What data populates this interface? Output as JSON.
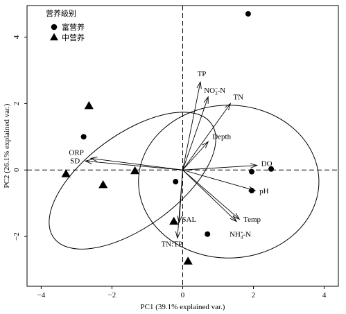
{
  "chart_data": {
    "type": "scatter",
    "xlabel": "PC1 (39.1% explained var.)",
    "ylabel": "PC2 (26.1% explained var.)",
    "xlim": [
      -4.4,
      4.4
    ],
    "ylim": [
      -3.5,
      4.95
    ],
    "xticks": [
      -4,
      -2,
      0,
      2,
      4
    ],
    "yticks": [
      -2,
      0,
      2,
      4
    ],
    "grid": false,
    "reference_lines": {
      "x": 0,
      "y": 0,
      "style": "dashed"
    },
    "legend": {
      "title": "营养级别",
      "placement": "top-left",
      "entries": [
        {
          "label": "富营养",
          "marker": "circle"
        },
        {
          "label": "中营养",
          "marker": "triangle"
        }
      ]
    },
    "series": [
      {
        "name": "富营养",
        "marker": "circle",
        "points": [
          [
            1.85,
            4.7
          ],
          [
            -2.8,
            1.0
          ],
          [
            -0.2,
            -0.35
          ],
          [
            1.95,
            -0.05
          ],
          [
            2.5,
            0.03
          ],
          [
            1.95,
            -0.62
          ],
          [
            0.7,
            -1.93
          ]
        ]
      },
      {
        "name": "中营养",
        "marker": "triangle",
        "points": [
          [
            -2.65,
            1.93
          ],
          [
            -3.3,
            -0.12
          ],
          [
            -1.35,
            -0.03
          ],
          [
            -2.25,
            -0.45
          ],
          [
            -0.25,
            -1.55
          ],
          [
            0.15,
            -2.75
          ]
        ]
      }
    ],
    "ellipses": [
      {
        "group": "富营养",
        "center": [
          1.3,
          -0.35
        ],
        "rx": 2.55,
        "ry": 2.3,
        "angle_deg": 0
      },
      {
        "group": "中营养",
        "center": [
          -1.42,
          -0.32
        ],
        "rx": 2.75,
        "ry": 1.4,
        "angle_deg": -36
      }
    ],
    "vectors": [
      {
        "label": "TP",
        "x": 0.5,
        "y": 2.65
      },
      {
        "label_main": "NO",
        "label_sub": "3",
        "label_sup": "−",
        "label_tail": "-N",
        "x": 0.72,
        "y": 2.2
      },
      {
        "label": "TN",
        "x": 1.35,
        "y": 2.0
      },
      {
        "label": "Depth",
        "x": 0.72,
        "y": 0.85
      },
      {
        "label": "DO",
        "x": 2.1,
        "y": 0.14
      },
      {
        "label": "pH",
        "x": 2.05,
        "y": -0.62
      },
      {
        "label": "Temp",
        "x": 1.6,
        "y": -1.48
      },
      {
        "label_main": "NH",
        "label_sub": "4",
        "label_sup": "+",
        "label_tail": "-N",
        "x": 1.52,
        "y": -1.55
      },
      {
        "label": "ORP",
        "x": -2.6,
        "y": 0.35
      },
      {
        "label": "SD",
        "x": -2.75,
        "y": 0.27
      },
      {
        "label": "SAL",
        "x": -0.1,
        "y": -1.58
      },
      {
        "label": "TN:TP",
        "x": -0.15,
        "y": -2.05
      }
    ]
  }
}
